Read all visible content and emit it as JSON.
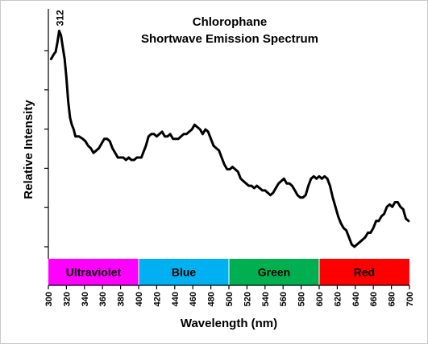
{
  "chart_data": {
    "type": "line",
    "title": "Chlorophane",
    "subtitle": "Shortwave Emission Spectrum",
    "xlabel": "Wavelength (nm)",
    "ylabel": "Relative Intensity",
    "xlim": [
      300,
      700
    ],
    "ylim": [
      0,
      1
    ],
    "x_ticks": [
      "300",
      "320",
      "340",
      "360",
      "380",
      "400",
      "420",
      "440",
      "460",
      "480",
      "500",
      "520",
      "540",
      "560",
      "580",
      "600",
      "620",
      "640",
      "660",
      "680",
      "700"
    ],
    "y_tick_count": 6,
    "grid": false,
    "legend": "none",
    "line_color": "#000000",
    "annotations": [
      {
        "text": "312",
        "x": 312,
        "y": 0.92
      }
    ],
    "bands": [
      {
        "label": "Ultraviolet",
        "from": 300,
        "to": 400,
        "color": "#ff00ff"
      },
      {
        "label": "Blue",
        "from": 400,
        "to": 500,
        "color": "#00b0f0"
      },
      {
        "label": "Green",
        "from": 500,
        "to": 600,
        "color": "#00b050"
      },
      {
        "label": "Red",
        "from": 600,
        "to": 700,
        "color": "#ff0000"
      }
    ],
    "series": [
      {
        "points": [
          [
            303,
            0.8
          ],
          [
            306,
            0.82
          ],
          [
            308,
            0.83
          ],
          [
            310,
            0.87
          ],
          [
            312,
            0.92
          ],
          [
            314,
            0.9
          ],
          [
            316,
            0.85
          ],
          [
            318,
            0.8
          ],
          [
            320,
            0.72
          ],
          [
            322,
            0.62
          ],
          [
            324,
            0.55
          ],
          [
            326,
            0.52
          ],
          [
            328,
            0.5
          ],
          [
            330,
            0.47
          ],
          [
            334,
            0.47
          ],
          [
            338,
            0.46
          ],
          [
            341,
            0.45
          ],
          [
            344,
            0.43
          ],
          [
            347,
            0.42
          ],
          [
            350,
            0.4
          ],
          [
            353,
            0.41
          ],
          [
            356,
            0.42
          ],
          [
            359,
            0.44
          ],
          [
            362,
            0.46
          ],
          [
            365,
            0.46
          ],
          [
            368,
            0.45
          ],
          [
            371,
            0.42
          ],
          [
            374,
            0.4
          ],
          [
            377,
            0.38
          ],
          [
            380,
            0.38
          ],
          [
            383,
            0.38
          ],
          [
            386,
            0.37
          ],
          [
            389,
            0.38
          ],
          [
            392,
            0.37
          ],
          [
            395,
            0.37
          ],
          [
            398,
            0.38
          ],
          [
            400,
            0.38
          ],
          [
            403,
            0.38
          ],
          [
            405,
            0.4
          ],
          [
            408,
            0.43
          ],
          [
            411,
            0.47
          ],
          [
            414,
            0.48
          ],
          [
            417,
            0.48
          ],
          [
            420,
            0.47
          ],
          [
            423,
            0.48
          ],
          [
            426,
            0.49
          ],
          [
            429,
            0.47
          ],
          [
            432,
            0.47
          ],
          [
            435,
            0.48
          ],
          [
            438,
            0.46
          ],
          [
            441,
            0.46
          ],
          [
            444,
            0.46
          ],
          [
            447,
            0.47
          ],
          [
            450,
            0.48
          ],
          [
            453,
            0.48
          ],
          [
            456,
            0.49
          ],
          [
            459,
            0.5
          ],
          [
            462,
            0.52
          ],
          [
            465,
            0.51
          ],
          [
            468,
            0.5
          ],
          [
            471,
            0.48
          ],
          [
            474,
            0.5
          ],
          [
            477,
            0.49
          ],
          [
            480,
            0.46
          ],
          [
            483,
            0.43
          ],
          [
            486,
            0.42
          ],
          [
            489,
            0.41
          ],
          [
            492,
            0.38
          ],
          [
            495,
            0.35
          ],
          [
            498,
            0.33
          ],
          [
            501,
            0.33
          ],
          [
            504,
            0.34
          ],
          [
            507,
            0.33
          ],
          [
            510,
            0.32
          ],
          [
            513,
            0.29
          ],
          [
            516,
            0.28
          ],
          [
            519,
            0.27
          ],
          [
            522,
            0.26
          ],
          [
            525,
            0.26
          ],
          [
            528,
            0.25
          ],
          [
            531,
            0.26
          ],
          [
            534,
            0.25
          ],
          [
            537,
            0.24
          ],
          [
            540,
            0.24
          ],
          [
            543,
            0.23
          ],
          [
            546,
            0.22
          ],
          [
            549,
            0.23
          ],
          [
            552,
            0.25
          ],
          [
            555,
            0.27
          ],
          [
            558,
            0.28
          ],
          [
            561,
            0.29
          ],
          [
            564,
            0.27
          ],
          [
            567,
            0.27
          ],
          [
            570,
            0.26
          ],
          [
            573,
            0.24
          ],
          [
            576,
            0.22
          ],
          [
            579,
            0.21
          ],
          [
            582,
            0.21
          ],
          [
            585,
            0.22
          ],
          [
            588,
            0.26
          ],
          [
            591,
            0.29
          ],
          [
            594,
            0.3
          ],
          [
            597,
            0.29
          ],
          [
            600,
            0.3
          ],
          [
            603,
            0.29
          ],
          [
            606,
            0.3
          ],
          [
            609,
            0.29
          ],
          [
            612,
            0.26
          ],
          [
            615,
            0.21
          ],
          [
            618,
            0.17
          ],
          [
            621,
            0.13
          ],
          [
            624,
            0.1
          ],
          [
            627,
            0.08
          ],
          [
            630,
            0.07
          ],
          [
            633,
            0.04
          ],
          [
            636,
            0.01
          ],
          [
            639,
            0.0
          ],
          [
            642,
            0.01
          ],
          [
            645,
            0.02
          ],
          [
            648,
            0.03
          ],
          [
            651,
            0.04
          ],
          [
            654,
            0.06
          ],
          [
            657,
            0.06
          ],
          [
            660,
            0.08
          ],
          [
            663,
            0.11
          ],
          [
            666,
            0.11
          ],
          [
            669,
            0.13
          ],
          [
            672,
            0.14
          ],
          [
            675,
            0.17
          ],
          [
            678,
            0.18
          ],
          [
            681,
            0.17
          ],
          [
            684,
            0.19
          ],
          [
            687,
            0.19
          ],
          [
            690,
            0.17
          ],
          [
            693,
            0.16
          ],
          [
            696,
            0.12
          ],
          [
            699,
            0.11
          ]
        ]
      }
    ]
  }
}
